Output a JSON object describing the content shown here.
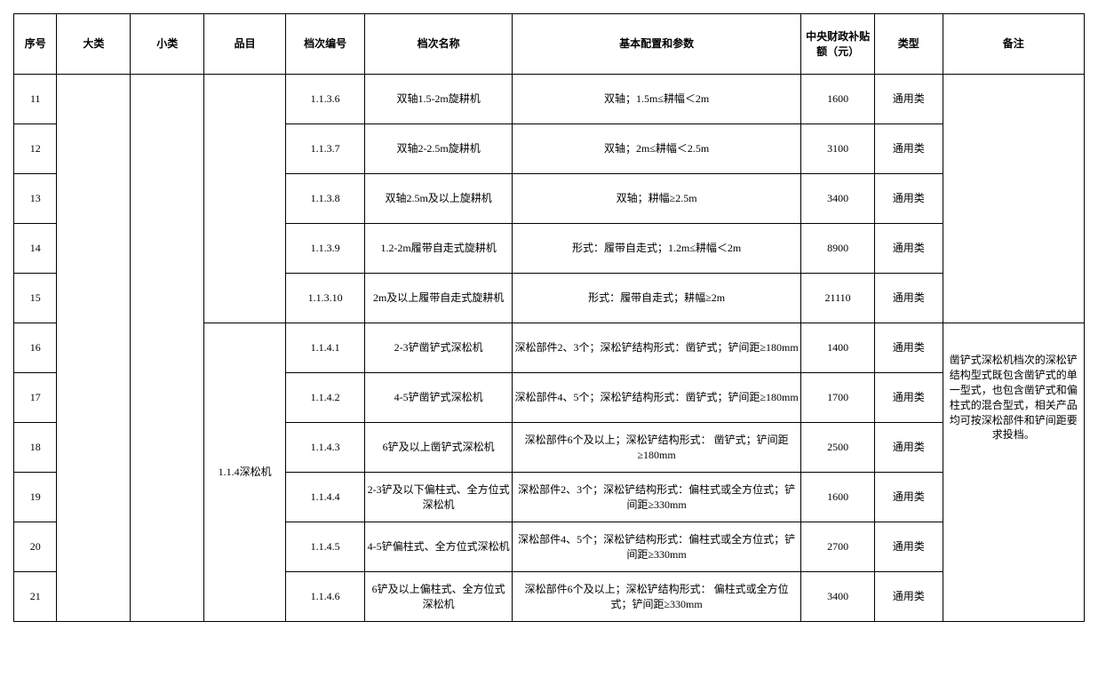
{
  "headers": {
    "seq": "序号",
    "cat1": "大类",
    "cat2": "小类",
    "item": "品目",
    "code": "档次编号",
    "name": "档次名称",
    "config": "基本配置和参数",
    "subsidy": "中央财政补贴额（元）",
    "type": "类型",
    "remark": "备注"
  },
  "merged": {
    "item_group2": "1.1.4深松机",
    "remark_group2": "凿铲式深松机档次的深松铲结构型式既包含凿铲式的单一型式，也包含凿铲式和偏柱式的混合型式，相关产品均可按深松部件和铲间距要求投档。"
  },
  "rows": [
    {
      "seq": "11",
      "code": "1.1.3.6",
      "name": "双轴1.5-2m旋耕机",
      "config": "双轴；1.5m≤耕幅＜2m",
      "subsidy": "1600",
      "type": "通用类"
    },
    {
      "seq": "12",
      "code": "1.1.3.7",
      "name": "双轴2-2.5m旋耕机",
      "config": "双轴；2m≤耕幅＜2.5m",
      "subsidy": "3100",
      "type": "通用类"
    },
    {
      "seq": "13",
      "code": "1.1.3.8",
      "name": "双轴2.5m及以上旋耕机",
      "config": "双轴；耕幅≥2.5m",
      "subsidy": "3400",
      "type": "通用类"
    },
    {
      "seq": "14",
      "code": "1.1.3.9",
      "name": "1.2-2m履带自走式旋耕机",
      "config": "形式：履带自走式；1.2m≤耕幅＜2m",
      "subsidy": "8900",
      "type": "通用类"
    },
    {
      "seq": "15",
      "code": "1.1.3.10",
      "name": "2m及以上履带自走式旋耕机",
      "config": "形式：履带自走式；耕幅≥2m",
      "subsidy": "21110",
      "type": "通用类"
    },
    {
      "seq": "16",
      "code": "1.1.4.1",
      "name": "2-3铲凿铲式深松机",
      "config": "深松部件2、3个；深松铲结构形式：凿铲式；铲间距≥180mm",
      "subsidy": "1400",
      "type": "通用类"
    },
    {
      "seq": "17",
      "code": "1.1.4.2",
      "name": "4-5铲凿铲式深松机",
      "config": "深松部件4、5个；深松铲结构形式：凿铲式；铲间距≥180mm",
      "subsidy": "1700",
      "type": "通用类"
    },
    {
      "seq": "18",
      "code": "1.1.4.3",
      "name": "6铲及以上凿铲式深松机",
      "config": "深松部件6个及以上；深松铲结构形式： 凿铲式；铲间距≥180mm",
      "subsidy": "2500",
      "type": "通用类"
    },
    {
      "seq": "19",
      "code": "1.1.4.4",
      "name": "2-3铲及以下偏柱式、全方位式深松机",
      "config": "深松部件2、3个；深松铲结构形式：偏柱式或全方位式；铲间距≥330mm",
      "subsidy": "1600",
      "type": "通用类"
    },
    {
      "seq": "20",
      "code": "1.1.4.5",
      "name": "4-5铲偏柱式、全方位式深松机",
      "config": "深松部件4、5个；深松铲结构形式：偏柱式或全方位式；铲间距≥330mm",
      "subsidy": "2700",
      "type": "通用类"
    },
    {
      "seq": "21",
      "code": "1.1.4.6",
      "name": "6铲及以上偏柱式、全方位式深松机",
      "config": "深松部件6个及以上；深松铲结构形式： 偏柱式或全方位式；铲间距≥330mm",
      "subsidy": "3400",
      "type": "通用类"
    }
  ]
}
